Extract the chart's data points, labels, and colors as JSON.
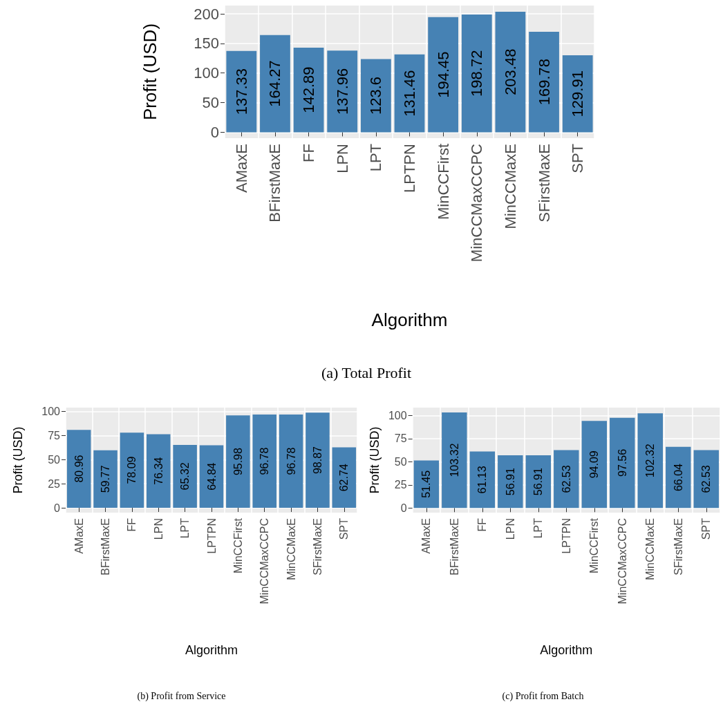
{
  "chart_data": [
    {
      "type": "bar",
      "title": "(a) Total Profit",
      "xlabel": "Algorithm",
      "ylabel": "Profit (USD)",
      "categories": [
        "AMaxE",
        "BFirstMaxE",
        "FF",
        "LPN",
        "LPT",
        "LPTPN",
        "MinCCFirst",
        "MinCCMaxCCPC",
        "MinCCMaxE",
        "SFirstMaxE",
        "SPT"
      ],
      "values": [
        137.33,
        164.27,
        142.89,
        137.96,
        123.6,
        131.46,
        194.45,
        198.72,
        203.48,
        169.78,
        129.91
      ],
      "color": "#4682b4",
      "ylim": [
        -10,
        214
      ],
      "yticks": [
        0,
        50,
        100,
        150,
        200
      ],
      "grid": true,
      "data_labels": true
    },
    {
      "type": "bar",
      "title": "(b) Profit from Service",
      "xlabel": "Algorithm",
      "ylabel": "Profit (USD)",
      "categories": [
        "AMaxE",
        "BFirstMaxE",
        "FF",
        "LPN",
        "LPT",
        "LPTPN",
        "MinCCFirst",
        "MinCCMaxCCPC",
        "MinCCMaxE",
        "SFirstMaxE",
        "SPT"
      ],
      "values": [
        80.96,
        59.77,
        78.09,
        76.34,
        65.32,
        64.84,
        95.98,
        96.78,
        96.78,
        98.87,
        62.74
      ],
      "color": "#4682b4",
      "ylim": [
        -5,
        104
      ],
      "yticks": [
        0,
        25,
        50,
        75,
        100
      ],
      "grid": true,
      "data_labels": true
    },
    {
      "type": "bar",
      "title": "(c) Profit from Batch",
      "xlabel": "Algorithm",
      "ylabel": "Profit (USD)",
      "categories": [
        "AMaxE",
        "BFirstMaxE",
        "FF",
        "LPN",
        "LPT",
        "LPTPN",
        "MinCCFirst",
        "MinCCMaxCCPC",
        "MinCCMaxE",
        "SFirstMaxE",
        "SPT"
      ],
      "values": [
        51.45,
        103.32,
        61.13,
        56.91,
        56.91,
        62.53,
        94.09,
        97.56,
        102.32,
        66.04,
        62.53
      ],
      "color": "#4682b4",
      "ylim": [
        -5,
        108.5
      ],
      "yticks": [
        0,
        25,
        50,
        75,
        100
      ],
      "grid": true,
      "data_labels": true
    }
  ]
}
